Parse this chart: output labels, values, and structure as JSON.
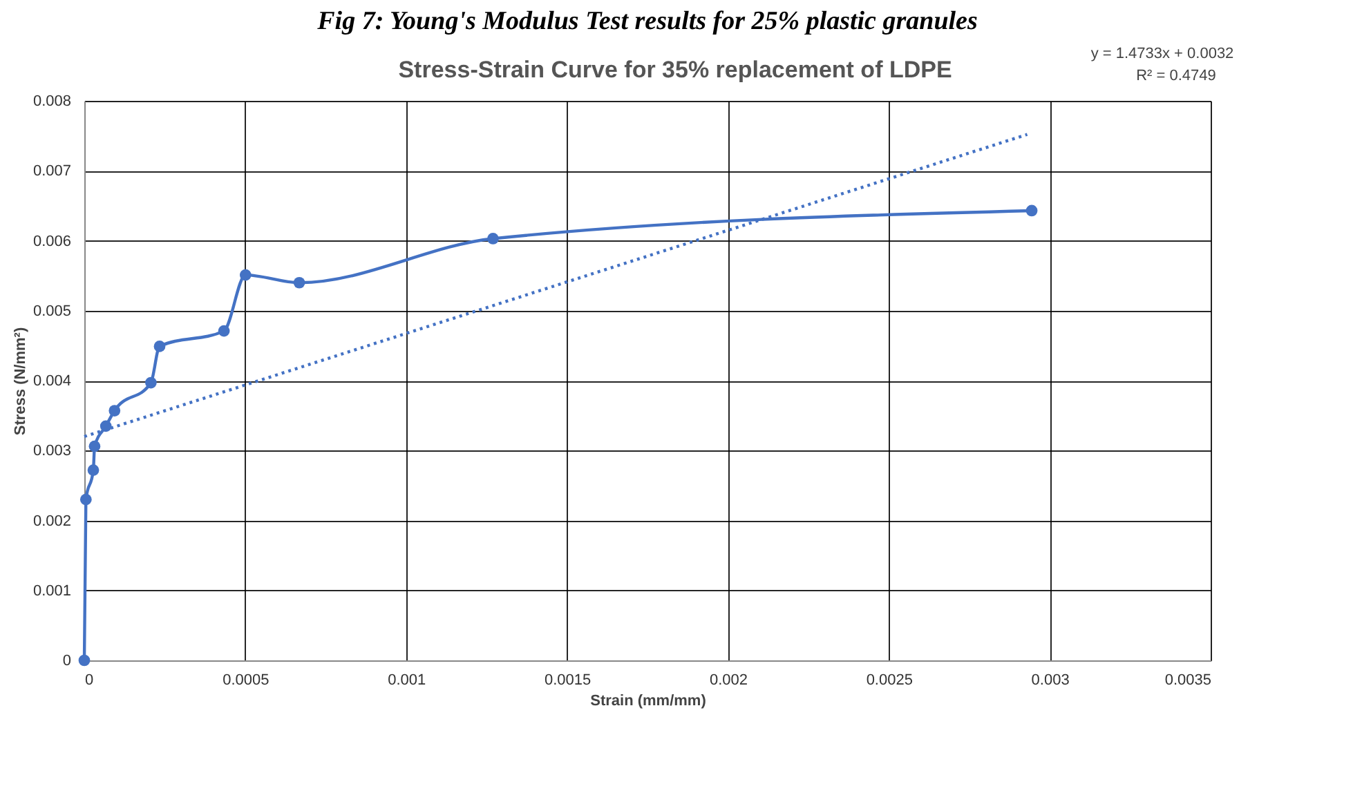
{
  "chart_data": {
    "type": "line",
    "title": "Stress-Strain Curve for 35% replacement of LDPE",
    "xlabel": "Strain (mm/mm)",
    "ylabel": "Stress (N/mm²)",
    "annotations": [
      "Fig 7: Young's Modulus Test results for 25% plastic granules",
      "y = 1.4733x + 0.0032",
      "R² = 0.4749"
    ],
    "series": [
      {
        "color": "#4472c4",
        "marker": "circle",
        "line_style": "solid",
        "x": [
          0,
          5e-06,
          2.8e-05,
          3.2e-05,
          6.7e-05,
          9.4e-05,
          0.000207,
          0.000234,
          0.000434,
          0.000501,
          0.000668,
          0.00127,
          0.002944
        ],
        "values": [
          0,
          0.0023,
          0.00272,
          0.00306,
          0.00335,
          0.00357,
          0.00397,
          0.00449,
          0.00471,
          0.00551,
          0.0054,
          0.00603,
          0.00643
        ]
      },
      {
        "type": "line",
        "color": "#4472c4",
        "marker": "none",
        "line_style": "dotted",
        "x": [
          0,
          0.00293
        ],
        "values": [
          0.0032,
          0.00752
        ]
      }
    ],
    "xlim": [
      0,
      0.0035
    ],
    "xticks": [
      0,
      0.0005,
      0.001,
      0.0015,
      0.002,
      0.0025,
      0.003,
      0.0035
    ],
    "ylim": [
      0,
      0.008
    ],
    "yticks": [
      0,
      0.001,
      0.002,
      0.003,
      0.004,
      0.005,
      0.006,
      0.007,
      0.008
    ],
    "grid": true,
    "legend": false
  }
}
